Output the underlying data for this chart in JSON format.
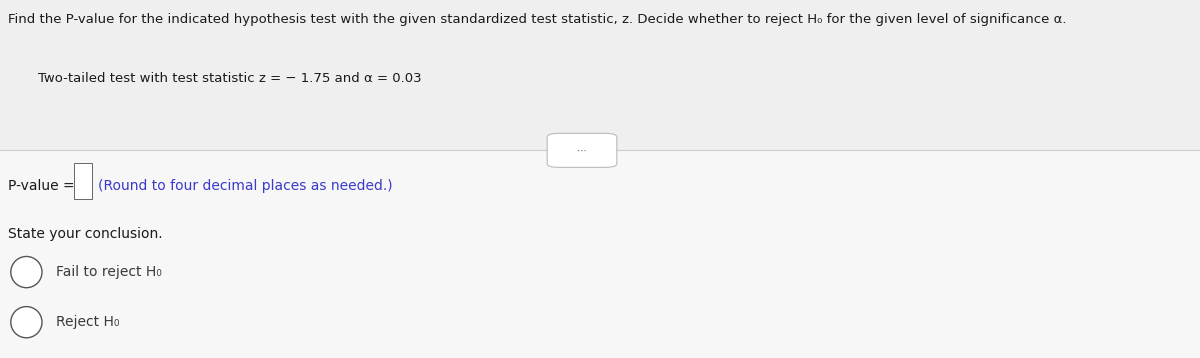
{
  "title_line": "Find the P-value for the indicated hypothesis test with the given standardized test statistic, z. Decide whether to reject H₀ for the given level of significance α.",
  "subtitle": "Two-tailed test with test statistic z = − 1.75 and α = 0.03",
  "pvalue_label": "P-value = ",
  "pvalue_instruction": "(Round to four decimal places as needed.)",
  "conclusion_label": "State your conclusion.",
  "option1": "Fail to reject H₀",
  "option2": "Reject H₀",
  "top_bg_color": "#f0f0f0",
  "bottom_bg_color": "#f5f5f5",
  "divider_color": "#cccccc",
  "text_color": "#1a1a1a",
  "radio_text_color": "#3a3a3a",
  "instruction_color": "#3a3acc",
  "title_fontsize": 9.5,
  "subtitle_fontsize": 9.5,
  "body_fontsize": 10,
  "radio_fontsize": 10
}
